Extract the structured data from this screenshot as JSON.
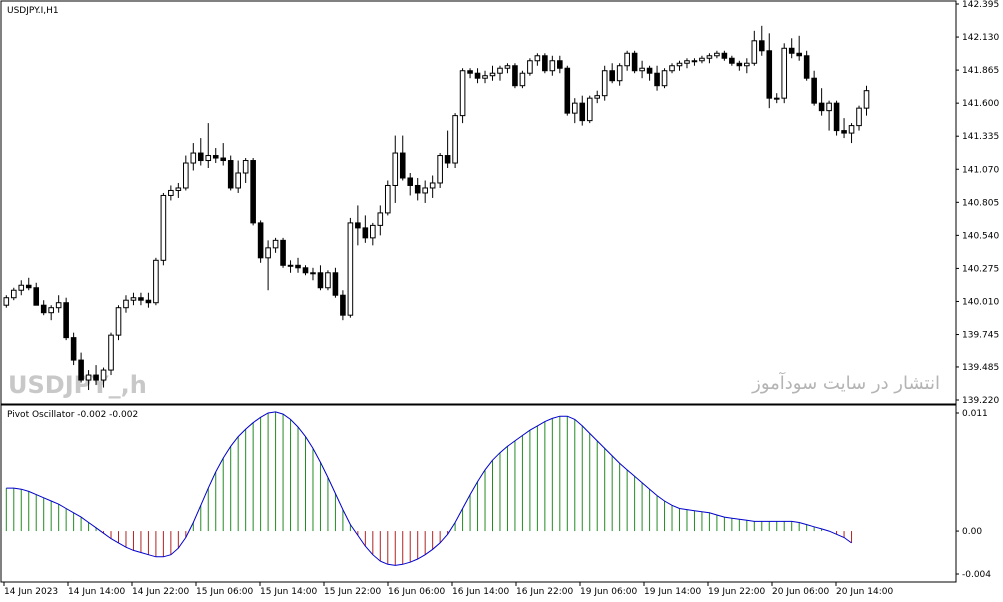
{
  "chart_data": [
    {
      "type": "candlestick",
      "symbol_label": "USDJPY.I,H1",
      "watermark": "USDJPY_,h",
      "footer_text": "انتشار در سایت سودآموز",
      "y_ticks": [
        "142.395",
        "142.130",
        "141.865",
        "141.600",
        "141.335",
        "141.070",
        "140.805",
        "140.540",
        "140.275",
        "140.010",
        "139.745",
        "139.485",
        "139.220"
      ],
      "ylim": [
        139.22,
        142.395
      ],
      "x_ticks": [
        "14 Jun 2023",
        "14 Jun 14:00",
        "14 Jun 22:00",
        "15 Jun 06:00",
        "15 Jun 14:00",
        "15 Jun 22:00",
        "16 Jun 06:00",
        "16 Jun 14:00",
        "16 Jun 22:00",
        "19 Jun 06:00",
        "19 Jun 14:00",
        "19 Jun 22:00",
        "20 Jun 06:00",
        "20 Jun 14:00"
      ],
      "candles": [
        [
          139.98,
          140.06,
          139.96,
          140.04
        ],
        [
          140.04,
          140.12,
          140.02,
          140.1
        ],
        [
          140.1,
          140.18,
          140.06,
          140.14
        ],
        [
          140.14,
          140.2,
          140.1,
          140.12
        ],
        [
          140.12,
          140.16,
          139.98,
          139.98
        ],
        [
          139.98,
          140.02,
          139.9,
          139.92
        ],
        [
          139.92,
          139.98,
          139.86,
          139.96
        ],
        [
          139.96,
          140.06,
          139.92,
          140.0
        ],
        [
          140.0,
          140.04,
          139.7,
          139.72
        ],
        [
          139.72,
          139.76,
          139.5,
          139.54
        ],
        [
          139.54,
          139.6,
          139.36,
          139.38
        ],
        [
          139.38,
          139.46,
          139.3,
          139.42
        ],
        [
          139.42,
          139.5,
          139.34,
          139.38
        ],
        [
          139.38,
          139.48,
          139.32,
          139.46
        ],
        [
          139.46,
          139.76,
          139.42,
          139.74
        ],
        [
          139.74,
          139.98,
          139.7,
          139.96
        ],
        [
          139.96,
          140.06,
          139.92,
          140.02
        ],
        [
          140.02,
          140.08,
          139.98,
          140.04
        ],
        [
          140.04,
          140.08,
          139.98,
          140.02
        ],
        [
          140.02,
          140.08,
          139.96,
          140.0
        ],
        [
          140.0,
          140.36,
          139.98,
          140.34
        ],
        [
          140.34,
          140.88,
          140.3,
          140.86
        ],
        [
          140.86,
          140.94,
          140.82,
          140.9
        ],
        [
          140.9,
          140.96,
          140.84,
          140.92
        ],
        [
          140.92,
          141.18,
          140.9,
          141.12
        ],
        [
          141.12,
          141.28,
          141.06,
          141.2
        ],
        [
          141.2,
          141.32,
          141.1,
          141.14
        ],
        [
          141.14,
          141.44,
          141.08,
          141.18
        ],
        [
          141.18,
          141.24,
          141.12,
          141.16
        ],
        [
          141.16,
          141.28,
          141.1,
          141.14
        ],
        [
          141.14,
          141.18,
          140.9,
          140.92
        ],
        [
          140.92,
          141.14,
          140.88,
          141.04
        ],
        [
          141.04,
          141.16,
          140.96,
          141.14
        ],
        [
          141.14,
          141.16,
          140.62,
          140.64
        ],
        [
          140.64,
          140.66,
          140.32,
          140.36
        ],
        [
          140.36,
          140.5,
          140.1,
          140.44
        ],
        [
          140.44,
          140.52,
          140.4,
          140.5
        ],
        [
          140.5,
          140.52,
          140.28,
          140.3
        ],
        [
          140.3,
          140.34,
          140.24,
          140.3
        ],
        [
          140.3,
          140.36,
          140.24,
          140.28
        ],
        [
          140.28,
          140.3,
          140.22,
          140.24
        ],
        [
          140.24,
          140.28,
          140.18,
          140.24
        ],
        [
          140.24,
          140.3,
          140.1,
          140.12
        ],
        [
          140.12,
          140.26,
          140.1,
          140.24
        ],
        [
          140.24,
          140.28,
          140.04,
          140.06
        ],
        [
          140.06,
          140.1,
          139.86,
          139.9
        ],
        [
          139.9,
          140.68,
          139.88,
          140.64
        ],
        [
          140.64,
          140.78,
          140.46,
          140.6
        ],
        [
          140.6,
          140.7,
          140.48,
          140.52
        ],
        [
          140.52,
          140.64,
          140.46,
          140.62
        ],
        [
          140.62,
          140.78,
          140.54,
          140.72
        ],
        [
          140.72,
          140.98,
          140.7,
          140.94
        ],
        [
          140.94,
          141.34,
          140.8,
          141.2
        ],
        [
          141.2,
          141.34,
          140.98,
          141.0
        ],
        [
          141.0,
          141.04,
          140.86,
          140.94
        ],
        [
          140.94,
          141.0,
          140.82,
          140.88
        ],
        [
          140.88,
          140.98,
          140.8,
          140.92
        ],
        [
          140.92,
          141.02,
          140.84,
          140.96
        ],
        [
          140.96,
          141.2,
          140.92,
          141.18
        ],
        [
          141.18,
          141.38,
          141.08,
          141.12
        ],
        [
          141.12,
          141.52,
          141.08,
          141.5
        ],
        [
          141.5,
          141.88,
          141.44,
          141.86
        ],
        [
          141.86,
          141.88,
          141.8,
          141.84
        ],
        [
          141.84,
          141.88,
          141.76,
          141.8
        ],
        [
          141.8,
          141.86,
          141.76,
          141.82
        ],
        [
          141.82,
          141.9,
          141.78,
          141.84
        ],
        [
          141.84,
          141.9,
          141.78,
          141.88
        ],
        [
          141.88,
          141.92,
          141.84,
          141.9
        ],
        [
          141.9,
          141.92,
          141.72,
          141.74
        ],
        [
          141.74,
          141.86,
          141.72,
          141.84
        ],
        [
          141.84,
          141.96,
          141.82,
          141.94
        ],
        [
          141.94,
          142.0,
          141.9,
          141.98
        ],
        [
          141.98,
          142.0,
          141.84,
          141.86
        ],
        [
          141.86,
          141.98,
          141.82,
          141.94
        ],
        [
          141.94,
          141.98,
          141.84,
          141.88
        ],
        [
          141.88,
          141.9,
          141.5,
          141.52
        ],
        [
          141.52,
          141.64,
          141.44,
          141.6
        ],
        [
          141.6,
          141.66,
          141.42,
          141.46
        ],
        [
          141.46,
          141.66,
          141.44,
          141.64
        ],
        [
          141.64,
          141.7,
          141.6,
          141.66
        ],
        [
          141.66,
          141.9,
          141.62,
          141.86
        ],
        [
          141.86,
          141.92,
          141.76,
          141.78
        ],
        [
          141.78,
          141.92,
          141.74,
          141.9
        ],
        [
          141.9,
          142.02,
          141.86,
          142.0
        ],
        [
          142.0,
          142.02,
          141.84,
          141.86
        ],
        [
          141.86,
          141.94,
          141.8,
          141.88
        ],
        [
          141.88,
          141.9,
          141.78,
          141.84
        ],
        [
          141.84,
          141.9,
          141.7,
          141.74
        ],
        [
          141.74,
          141.88,
          141.72,
          141.86
        ],
        [
          141.86,
          141.92,
          141.84,
          141.9
        ],
        [
          141.9,
          141.94,
          141.86,
          141.92
        ],
        [
          141.92,
          141.96,
          141.88,
          141.94
        ],
        [
          141.94,
          141.96,
          141.9,
          141.94
        ],
        [
          141.94,
          141.98,
          141.92,
          141.96
        ],
        [
          141.96,
          142.0,
          141.92,
          141.98
        ],
        [
          141.98,
          142.02,
          141.96,
          142.0
        ],
        [
          142.0,
          142.02,
          141.94,
          141.96
        ],
        [
          141.96,
          141.98,
          141.9,
          141.92
        ],
        [
          141.92,
          141.94,
          141.86,
          141.9
        ],
        [
          141.9,
          141.96,
          141.84,
          141.92
        ],
        [
          141.92,
          142.18,
          141.9,
          142.1
        ],
        [
          142.1,
          142.22,
          141.98,
          142.02
        ],
        [
          142.02,
          142.16,
          141.56,
          141.64
        ],
        [
          141.64,
          141.68,
          141.6,
          141.64
        ],
        [
          141.64,
          142.08,
          141.6,
          142.04
        ],
        [
          142.04,
          142.12,
          141.96,
          142.0
        ],
        [
          142.0,
          142.14,
          141.94,
          141.98
        ],
        [
          141.98,
          142.02,
          141.78,
          141.8
        ],
        [
          141.8,
          141.86,
          141.58,
          141.6
        ],
        [
          141.6,
          141.72,
          141.5,
          141.54
        ],
        [
          141.54,
          141.62,
          141.38,
          141.6
        ],
        [
          141.6,
          141.62,
          141.34,
          141.38
        ],
        [
          141.38,
          141.48,
          141.32,
          141.36
        ],
        [
          141.36,
          141.44,
          141.28,
          141.42
        ],
        [
          141.42,
          141.58,
          141.38,
          141.56
        ],
        [
          141.56,
          141.74,
          141.5,
          141.7
        ]
      ]
    },
    {
      "type": "histogram",
      "title": "Pivot Oscillator -0.002 -0.002",
      "y_ticks": [
        "0.011",
        "0.00",
        "-0.004"
      ],
      "ylim": [
        -0.004,
        0.011
      ],
      "positive_color": "#228b22",
      "negative_color": "#b22222",
      "line_color": "#0000cd",
      "values": [
        0.004,
        0.004,
        0.0039,
        0.0037,
        0.0034,
        0.0031,
        0.0028,
        0.0025,
        0.0021,
        0.0017,
        0.0013,
        0.0008,
        0.0003,
        -0.0002,
        -0.0007,
        -0.0011,
        -0.0015,
        -0.0018,
        -0.002,
        -0.0022,
        -0.0024,
        -0.0024,
        -0.0022,
        -0.0016,
        -0.0006,
        0.0008,
        0.0024,
        0.004,
        0.0055,
        0.0068,
        0.0079,
        0.0088,
        0.0095,
        0.0101,
        0.0106,
        0.011,
        0.0111,
        0.0109,
        0.0104,
        0.0097,
        0.0088,
        0.0077,
        0.0064,
        0.005,
        0.0035,
        0.002,
        0.0006,
        -0.0004,
        -0.0014,
        -0.0022,
        -0.0028,
        -0.0031,
        -0.0032,
        -0.0031,
        -0.0029,
        -0.0026,
        -0.0022,
        -0.0017,
        -0.0011,
        -0.0003,
        0.0008,
        0.0021,
        0.0034,
        0.0046,
        0.0057,
        0.0066,
        0.0073,
        0.0079,
        0.0084,
        0.0089,
        0.0094,
        0.0098,
        0.0102,
        0.0105,
        0.0107,
        0.0107,
        0.0104,
        0.0098,
        0.0091,
        0.0084,
        0.0077,
        0.007,
        0.0063,
        0.0057,
        0.0051,
        0.0045,
        0.0039,
        0.0033,
        0.0028,
        0.0024,
        0.0021,
        0.002,
        0.0019,
        0.0018,
        0.0017,
        0.0015,
        0.0013,
        0.0012,
        0.0011,
        0.001,
        0.0009,
        0.0009,
        0.0009,
        0.0009,
        0.0009,
        0.0009,
        0.0008,
        0.0006,
        0.0004,
        0.0002,
        0.0,
        -0.0003,
        -0.0006,
        -0.0011
      ]
    }
  ]
}
